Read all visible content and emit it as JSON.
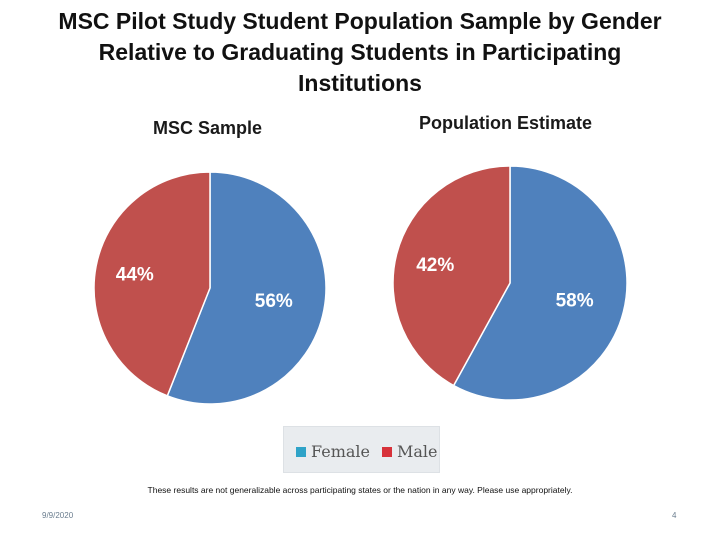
{
  "title_lines": [
    "MSC Pilot Study Student Population Sample by Gender",
    "Relative to Graduating Students in Participating",
    "Institutions"
  ],
  "chart_data": [
    {
      "type": "pie",
      "title": "MSC Sample",
      "categories": [
        "Female",
        "Male"
      ],
      "values": [
        56,
        44
      ],
      "labels": [
        "56%",
        "44%"
      ],
      "colors": [
        "#4f81bd",
        "#c0504d"
      ]
    },
    {
      "type": "pie",
      "title": "Population Estimate",
      "categories": [
        "Female",
        "Male"
      ],
      "values": [
        58,
        42
      ],
      "labels": [
        "58%",
        "42%"
      ],
      "colors": [
        "#4f81bd",
        "#c0504d"
      ]
    }
  ],
  "legend": {
    "items": [
      {
        "label": "Female",
        "color": "#2fa3c8"
      },
      {
        "label": "Male",
        "color": "#d7323a"
      }
    ]
  },
  "disclaimer": "These results are not generalizable across participating states or the nation in any way. Please use appropriately.",
  "footer": {
    "date": "9/9/2020",
    "page": "4"
  }
}
